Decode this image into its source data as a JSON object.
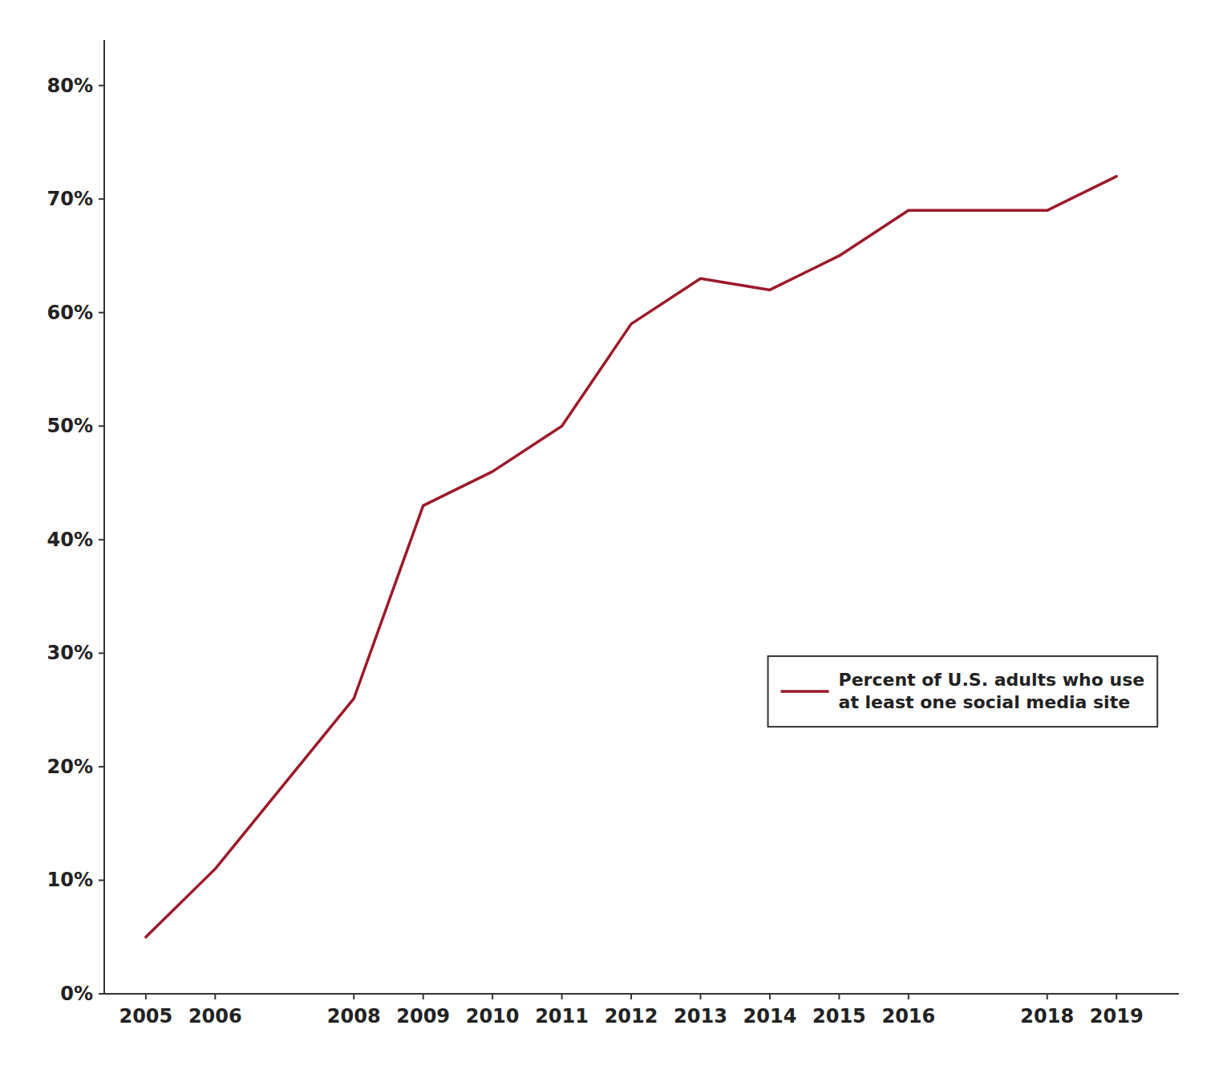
{
  "chart_data": {
    "type": "line",
    "x": [
      2005,
      2006,
      2008,
      2009,
      2010,
      2011,
      2012,
      2013,
      2014,
      2015,
      2016,
      2018,
      2019
    ],
    "series": [
      {
        "name": "Percent of U.S. adults who use\nat least one social media site",
        "color": "#9b1a2a",
        "values": [
          0.05,
          0.11,
          0.26,
          0.43,
          0.46,
          0.5,
          0.59,
          0.63,
          0.62,
          0.65,
          0.69,
          0.69,
          0.72
        ]
      }
    ],
    "xlim": [
      2004.4,
      2019.9
    ],
    "xticks": [
      2005,
      2006,
      2008,
      2009,
      2010,
      2011,
      2012,
      2013,
      2014,
      2015,
      2016,
      2018,
      2019
    ],
    "ylim": [
      0,
      0.84
    ],
    "yticks": [
      {
        "value": 0.0,
        "label": "0%"
      },
      {
        "value": 0.1,
        "label": "10%"
      },
      {
        "value": 0.2,
        "label": "20%"
      },
      {
        "value": 0.3,
        "label": "30%"
      },
      {
        "value": 0.4,
        "label": "40%"
      },
      {
        "value": 0.5,
        "label": "50%"
      },
      {
        "value": 0.6,
        "label": "60%"
      },
      {
        "value": 0.7,
        "label": "70%"
      },
      {
        "value": 0.8,
        "label": "80%"
      }
    ],
    "grid": false,
    "legend": "lower right"
  }
}
